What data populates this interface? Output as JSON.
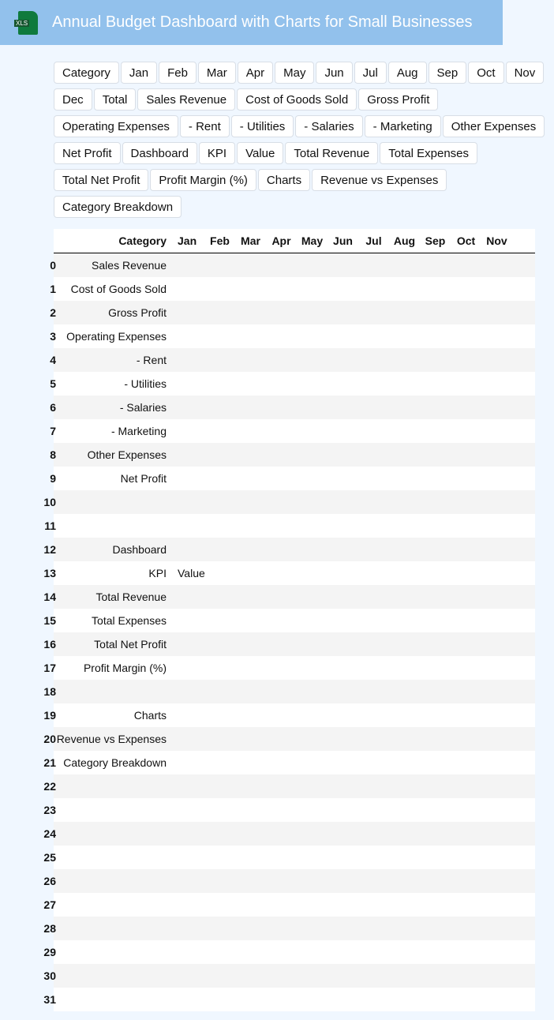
{
  "header": {
    "title": "Annual Budget Dashboard with Charts for Small Businesses",
    "icon": "xls-file-icon",
    "icon_label": "XLS"
  },
  "buttons": [
    "Category",
    "Jan",
    "Feb",
    "Mar",
    "Apr",
    "May",
    "Jun",
    "Jul",
    "Aug",
    "Sep",
    "Oct",
    "Nov",
    "Dec",
    "Total",
    "Sales Revenue",
    "Cost of Goods Sold",
    "Gross Profit",
    "Operating Expenses",
    "- Rent",
    "- Utilities",
    "- Salaries",
    "- Marketing",
    "Other Expenses",
    "Net Profit",
    "Dashboard",
    "KPI",
    "Value",
    "Total Revenue",
    "Total Expenses",
    "Total Net Profit",
    "Profit Margin (%)",
    "Charts",
    "Revenue vs Expenses",
    "Category Breakdown"
  ],
  "table": {
    "columns": [
      "Category",
      "Jan",
      "Feb",
      "Mar",
      "Apr",
      "May",
      "Jun",
      "Jul",
      "Aug",
      "Sep",
      "Oct",
      "Nov"
    ],
    "rows": [
      {
        "index": "0",
        "category": "Sales Revenue",
        "jan": ""
      },
      {
        "index": "1",
        "category": "Cost of Goods Sold",
        "jan": ""
      },
      {
        "index": "2",
        "category": "Gross Profit",
        "jan": ""
      },
      {
        "index": "3",
        "category": "Operating Expenses",
        "jan": ""
      },
      {
        "index": "4",
        "category": "- Rent",
        "jan": ""
      },
      {
        "index": "5",
        "category": "- Utilities",
        "jan": ""
      },
      {
        "index": "6",
        "category": "- Salaries",
        "jan": ""
      },
      {
        "index": "7",
        "category": "- Marketing",
        "jan": ""
      },
      {
        "index": "8",
        "category": "Other Expenses",
        "jan": ""
      },
      {
        "index": "9",
        "category": "Net Profit",
        "jan": ""
      },
      {
        "index": "10",
        "category": "",
        "jan": ""
      },
      {
        "index": "11",
        "category": "",
        "jan": ""
      },
      {
        "index": "12",
        "category": "Dashboard",
        "jan": ""
      },
      {
        "index": "13",
        "category": "KPI",
        "jan": "Value"
      },
      {
        "index": "14",
        "category": "Total Revenue",
        "jan": ""
      },
      {
        "index": "15",
        "category": "Total Expenses",
        "jan": ""
      },
      {
        "index": "16",
        "category": "Total Net Profit",
        "jan": ""
      },
      {
        "index": "17",
        "category": "Profit Margin (%)",
        "jan": ""
      },
      {
        "index": "18",
        "category": "",
        "jan": ""
      },
      {
        "index": "19",
        "category": "Charts",
        "jan": ""
      },
      {
        "index": "20",
        "category": "Revenue vs Expenses",
        "jan": ""
      },
      {
        "index": "21",
        "category": "Category Breakdown",
        "jan": ""
      },
      {
        "index": "22",
        "category": "",
        "jan": ""
      },
      {
        "index": "23",
        "category": "",
        "jan": ""
      },
      {
        "index": "24",
        "category": "",
        "jan": ""
      },
      {
        "index": "25",
        "category": "",
        "jan": ""
      },
      {
        "index": "26",
        "category": "",
        "jan": ""
      },
      {
        "index": "27",
        "category": "",
        "jan": ""
      },
      {
        "index": "28",
        "category": "",
        "jan": ""
      },
      {
        "index": "29",
        "category": "",
        "jan": ""
      },
      {
        "index": "30",
        "category": "",
        "jan": ""
      },
      {
        "index": "31",
        "category": "",
        "jan": ""
      }
    ]
  }
}
